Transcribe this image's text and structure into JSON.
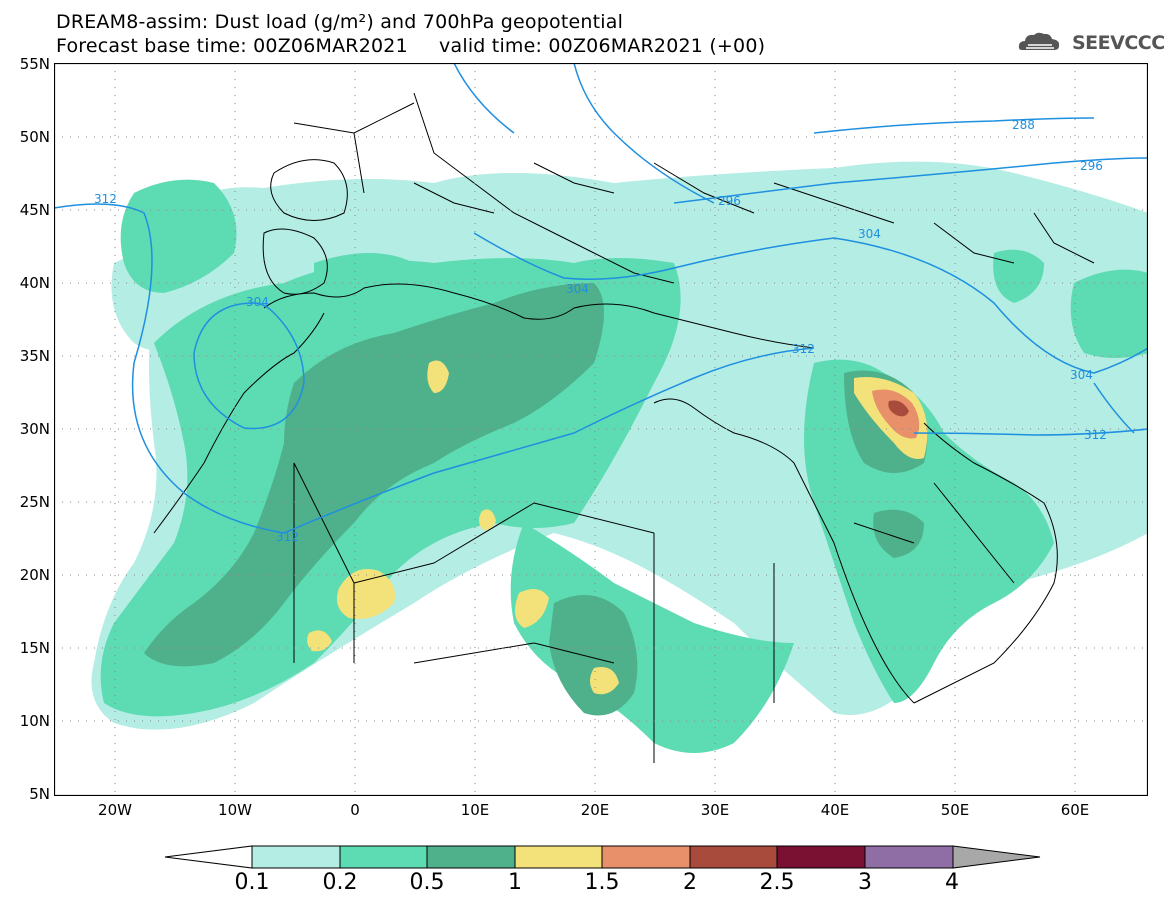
{
  "title": {
    "line1": "DREAM8-assim: Dust load (g/m²) and 700hPa geopotential",
    "line2": "Forecast base time: 00Z06MAR2021     valid time: 00Z06MAR2021 (+00)"
  },
  "logo": {
    "text": "SEEVCCC",
    "icon": "cloud-icon"
  },
  "map": {
    "lat_labels": [
      "55N",
      "50N",
      "45N",
      "40N",
      "35N",
      "30N",
      "25N",
      "20N",
      "15N",
      "10N",
      "5N"
    ],
    "lon_labels": [
      "20W",
      "10W",
      "0",
      "10E",
      "20E",
      "30E",
      "40E",
      "50E",
      "60E"
    ],
    "contour_labels": [
      "312",
      "304",
      "312",
      "304",
      "296",
      "304",
      "296",
      "288",
      "312",
      "304",
      "312"
    ],
    "colors": {
      "ocean": "#ffffff",
      "coast": "#000000",
      "contour": "#1f8fe0"
    }
  },
  "legend": {
    "labels": [
      "0.1",
      "0.2",
      "0.5",
      "1",
      "1.5",
      "2",
      "2.5",
      "3",
      "4"
    ],
    "colors": [
      "#b3ede3",
      "#5ddbb3",
      "#4fb18c",
      "#f3e27a",
      "#e8906a",
      "#a84a3c",
      "#7a1133",
      "#8e6ea4",
      "#a8a8a8"
    ]
  }
}
